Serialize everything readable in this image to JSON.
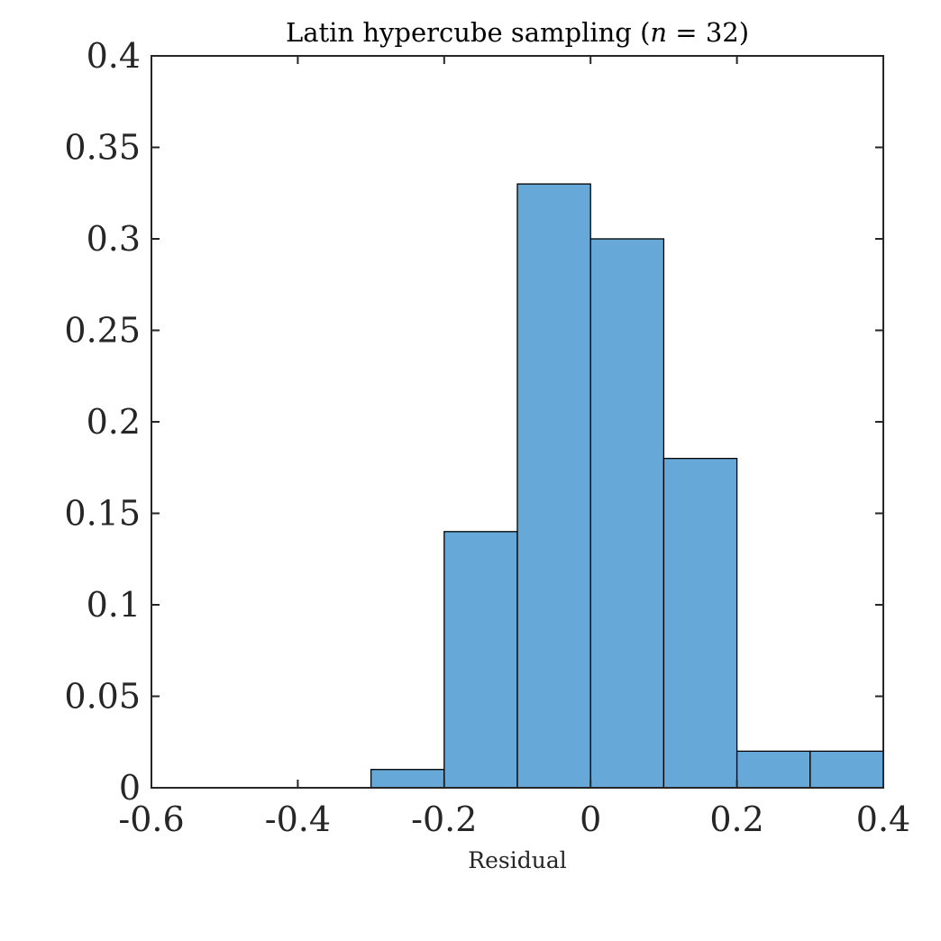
{
  "chart_data": {
    "type": "bar",
    "subtype": "histogram",
    "title": "Latin hypercube sampling (n = 32)",
    "title_prefix": "Latin hypercube sampling (",
    "title_var": "n",
    "title_suffix": " = 32)",
    "xlabel": "Residual",
    "ylabel": "",
    "xlim": [
      -0.6,
      0.4
    ],
    "ylim": [
      0,
      0.4
    ],
    "xticks": [
      -0.6,
      -0.4,
      -0.2,
      0,
      0.2,
      0.4
    ],
    "yticks": [
      0,
      0.05,
      0.1,
      0.15,
      0.2,
      0.25,
      0.3,
      0.35,
      0.4
    ],
    "xtick_labels": [
      "-0.6",
      "-0.4",
      "-0.2",
      "0",
      "0.2",
      "0.4"
    ],
    "ytick_labels": [
      "0",
      "0.05",
      "0.1",
      "0.15",
      "0.2",
      "0.25",
      "0.3",
      "0.35",
      "0.4"
    ],
    "bins": [
      {
        "x0": -0.3,
        "x1": -0.2,
        "value": 0.01
      },
      {
        "x0": -0.2,
        "x1": -0.1,
        "value": 0.14
      },
      {
        "x0": -0.1,
        "x1": 0.0,
        "value": 0.33
      },
      {
        "x0": 0.0,
        "x1": 0.1,
        "value": 0.3
      },
      {
        "x0": 0.1,
        "x1": 0.2,
        "value": 0.18
      },
      {
        "x0": 0.2,
        "x1": 0.3,
        "value": 0.02
      },
      {
        "x0": 0.3,
        "x1": 0.4,
        "value": 0.02
      }
    ],
    "grid": false,
    "bar_color": "#66a9d8",
    "edge_color": "#000000",
    "axis_color": "#262626"
  }
}
